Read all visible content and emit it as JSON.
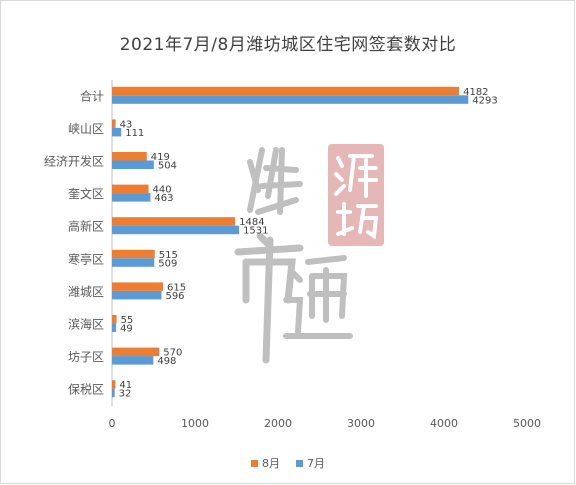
{
  "chart_data": {
    "type": "bar",
    "orientation": "horizontal",
    "title": "2021年7月/8月潍坊城区住宅网签套数对比",
    "categories": [
      "合计",
      "峡山区",
      "经济开发区",
      "奎文区",
      "高新区",
      "寒亭区",
      "潍城区",
      "滨海区",
      "坊子区",
      "保税区"
    ],
    "series": [
      {
        "name": "8月",
        "color": "#ed7d31",
        "values": [
          4182,
          43,
          419,
          440,
          1484,
          515,
          615,
          55,
          570,
          41
        ]
      },
      {
        "name": "7月",
        "color": "#5b9bd5",
        "values": [
          4293,
          111,
          504,
          463,
          1531,
          509,
          596,
          49,
          498,
          32
        ]
      }
    ],
    "xlim": [
      0,
      5000
    ],
    "xticks": [
      0,
      1000,
      2000,
      3000,
      4000,
      5000
    ],
    "grid": false,
    "legend_position": "bottom"
  },
  "watermark": {
    "text": "楼市通",
    "seal_text": "潍坊",
    "seal_color": "#c0504d"
  }
}
